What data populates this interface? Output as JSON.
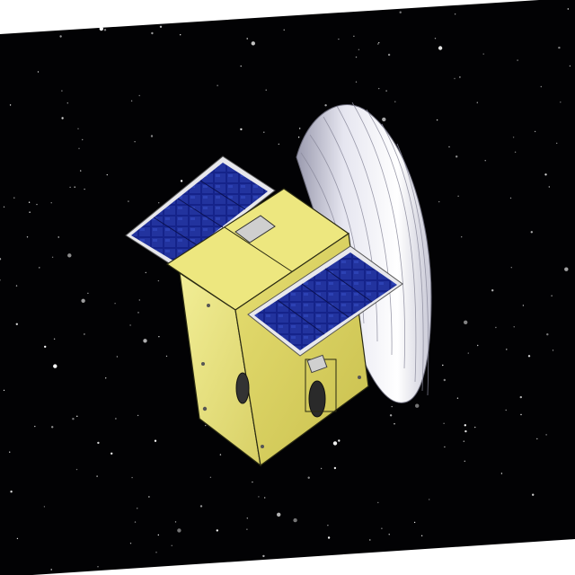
{
  "scene": {
    "subject": "cubesat",
    "background": "starfield",
    "colors": {
      "space": "#020204",
      "body_light": "#f0ec8a",
      "body_mid": "#dcd46a",
      "body_dark": "#c2b84a",
      "edge": "#2a2a12",
      "panel_frame": "#e8e8ec",
      "cell": "#1b2a8c",
      "cell_dark": "#0f1a66",
      "dish_light": "#f4f4fa",
      "dish_shade": "#b8b8c8",
      "star": "#ffffff"
    }
  }
}
